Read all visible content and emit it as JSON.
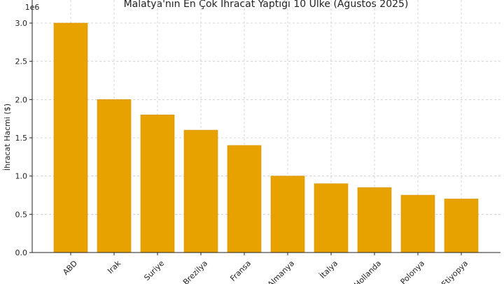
{
  "chart_data": {
    "type": "bar",
    "title": "Malatya'nın En Çok İhracat Yaptığı 10 Ülke (Ağustos 2025)",
    "xlabel": "",
    "ylabel": "İhracat Hacmi ($)",
    "y_offset_label": "1e6",
    "categories": [
      "ABD",
      "Irak",
      "Suriye",
      "Brezilya",
      "Fransa",
      "Almanya",
      "İtalya",
      "Hollanda",
      "Polonya",
      "Etiyopya"
    ],
    "values": [
      3000000,
      2000000,
      1800000,
      1600000,
      1400000,
      1000000,
      900000,
      850000,
      750000,
      700000
    ],
    "ylim": [
      0,
      3000000
    ],
    "y_ticks": [
      0,
      500000,
      1000000,
      1500000,
      2000000,
      2500000,
      3000000
    ],
    "y_tick_labels": [
      "0.0",
      "0.5",
      "1.0",
      "1.5",
      "2.0",
      "2.5",
      "3.0"
    ],
    "grid": true,
    "bar_color": "#E8A200"
  }
}
